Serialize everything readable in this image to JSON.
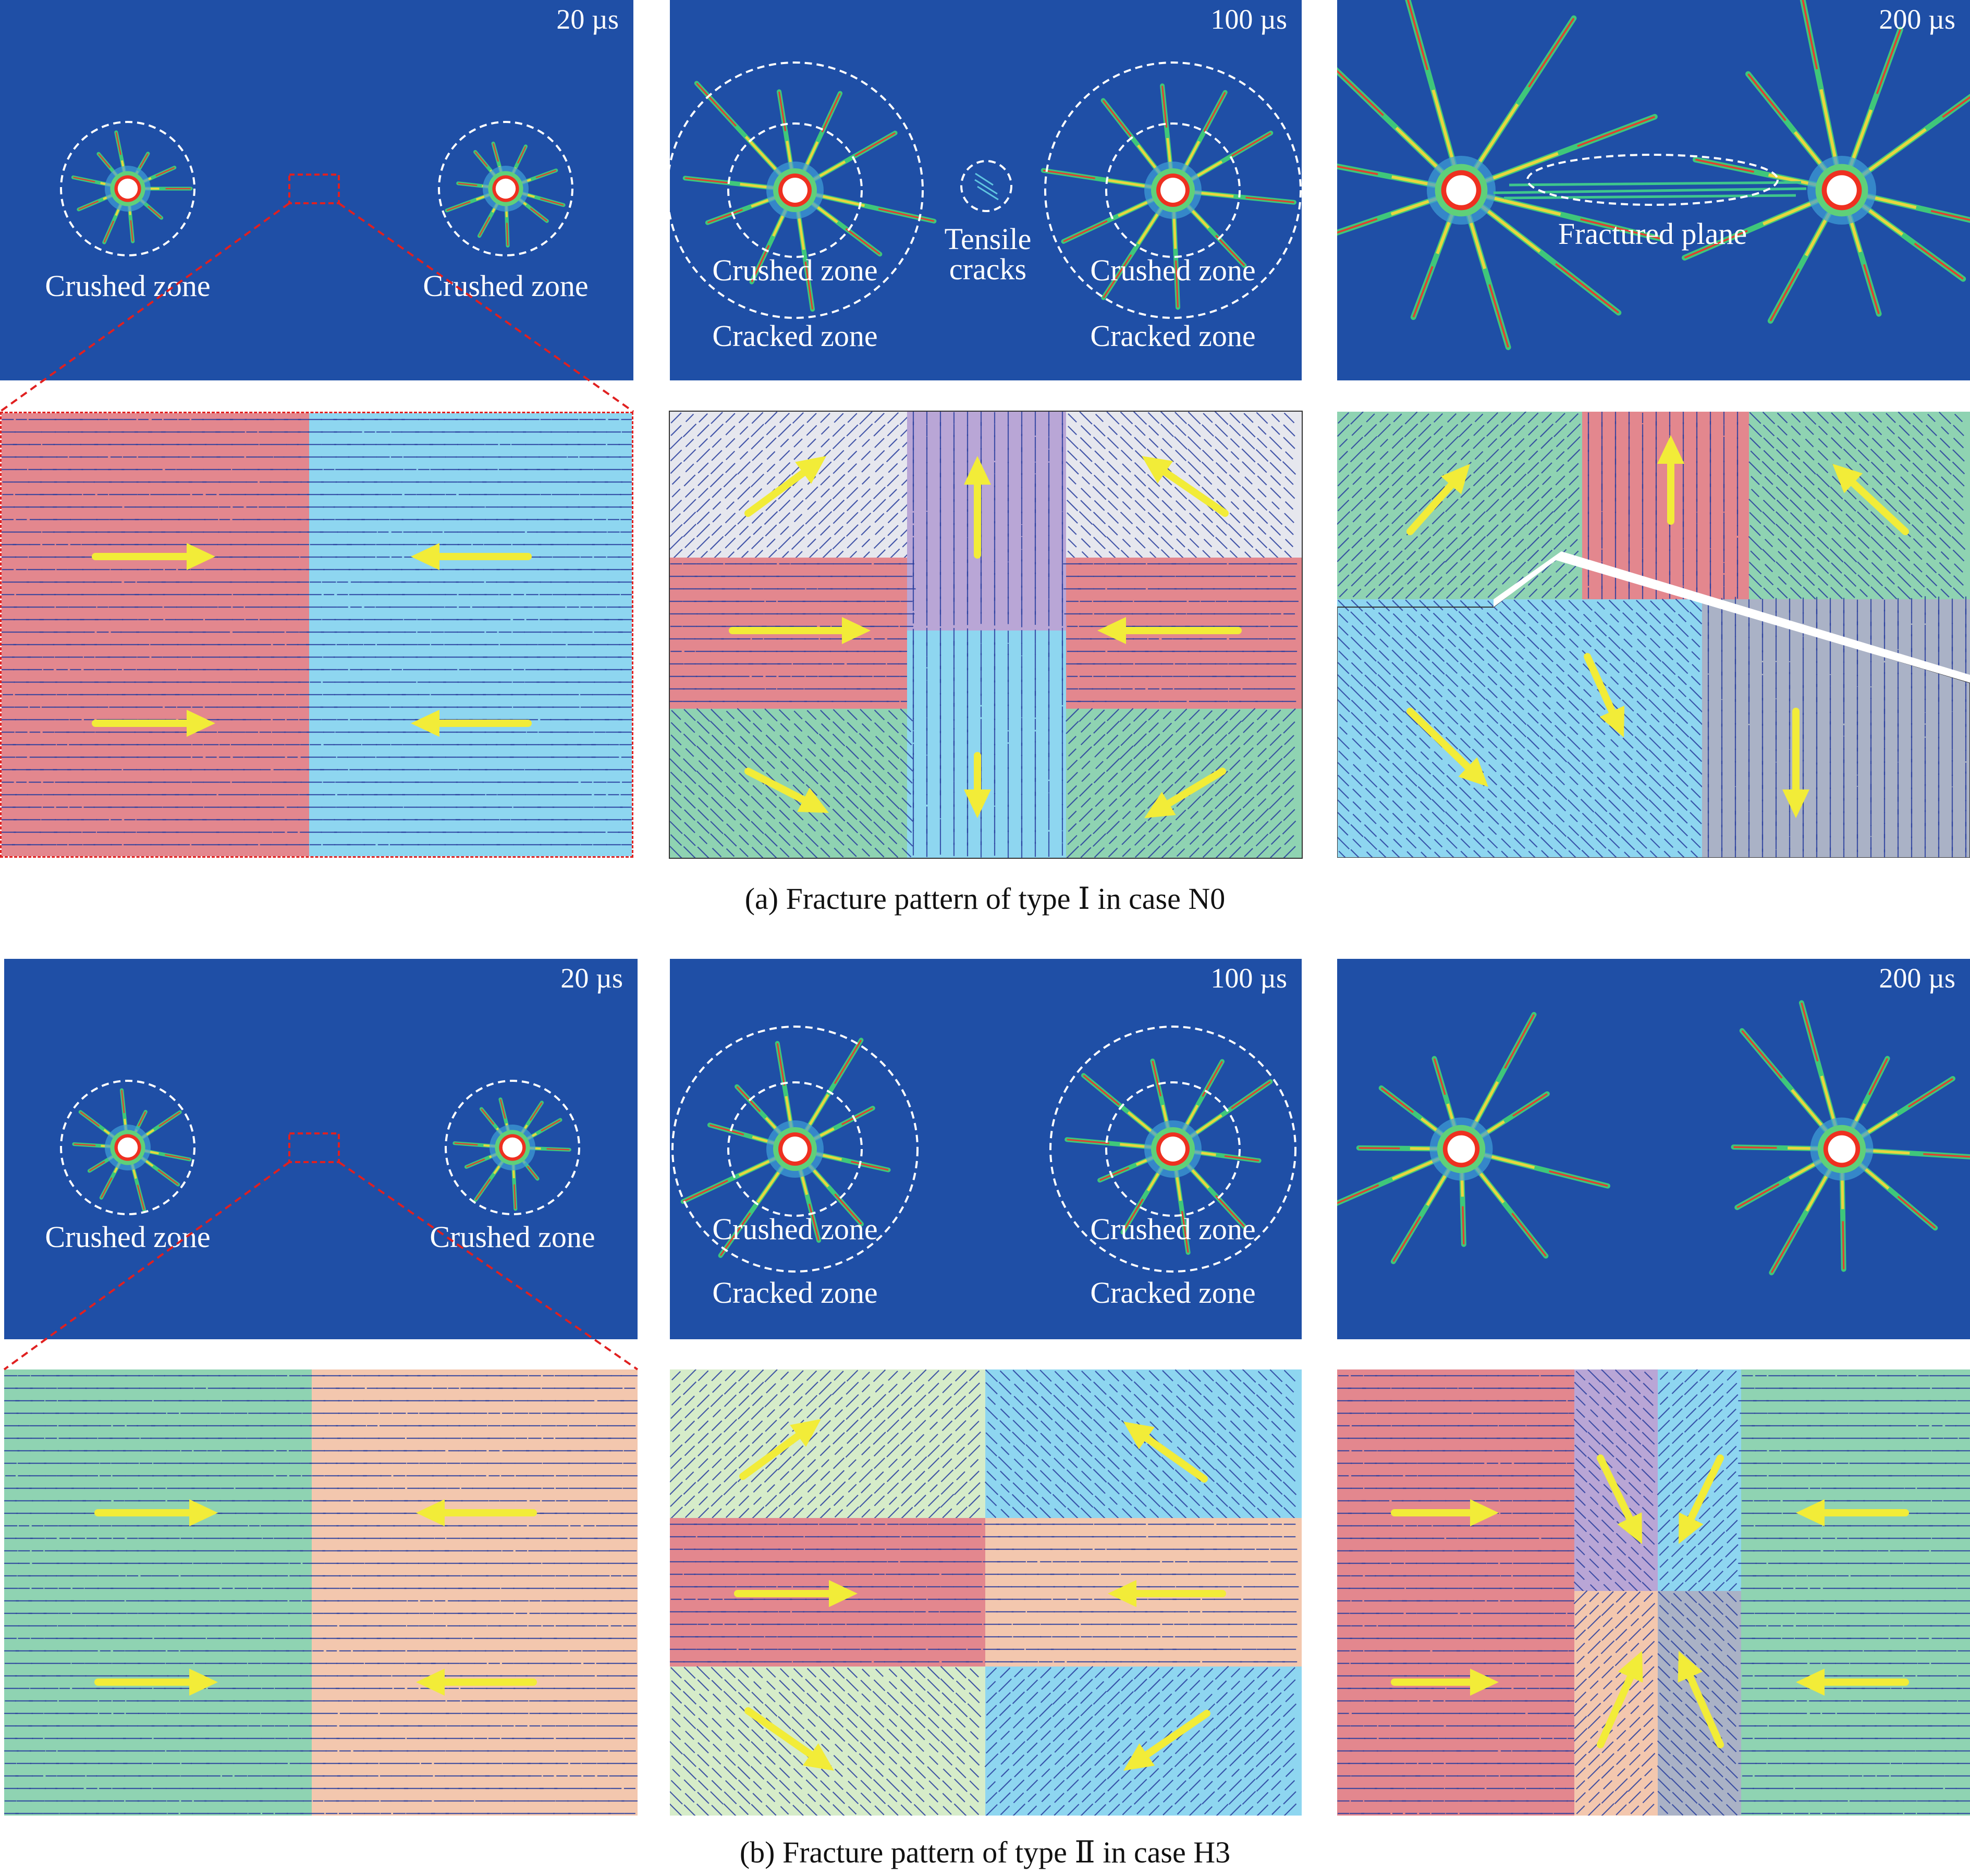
{
  "colors": {
    "sim_background": "#1f4fa6",
    "arrow": "#f2ec38",
    "vector": "#2a3f9e",
    "red": "#e3878e",
    "cyan": "#8ed6f0",
    "purple": "#b9a6d6",
    "grey": "#e6e7ee",
    "green": "#8fd3b2",
    "peach": "#f3c7ae",
    "light_green": "#d6ecc9",
    "slate": "#aab2c6"
  },
  "rows": [
    {
      "caption": "(a) Fracture pattern of type Ⅰ in case N0",
      "panels": [
        {
          "time": "20 µs",
          "labels": [
            "Crushed zone",
            "Crushed zone"
          ]
        },
        {
          "time": "100 µs",
          "labels": [
            "Crushed zone",
            "Crushed zone",
            "Cracked zone",
            "Cracked zone",
            "Tensile\ncracks"
          ]
        },
        {
          "time": "200 µs",
          "labels": [
            "Fractured plane"
          ]
        }
      ]
    },
    {
      "caption": "(b) Fracture pattern of type Ⅱ in case H3",
      "panels": [
        {
          "time": "20 µs",
          "labels": [
            "Crushed zone",
            "Crushed zone"
          ]
        },
        {
          "time": "100 µs",
          "labels": [
            "Crushed zone",
            "Crushed zone",
            "Cracked zone",
            "Cracked zone"
          ]
        },
        {
          "time": "200 µs",
          "labels": []
        }
      ]
    }
  ]
}
